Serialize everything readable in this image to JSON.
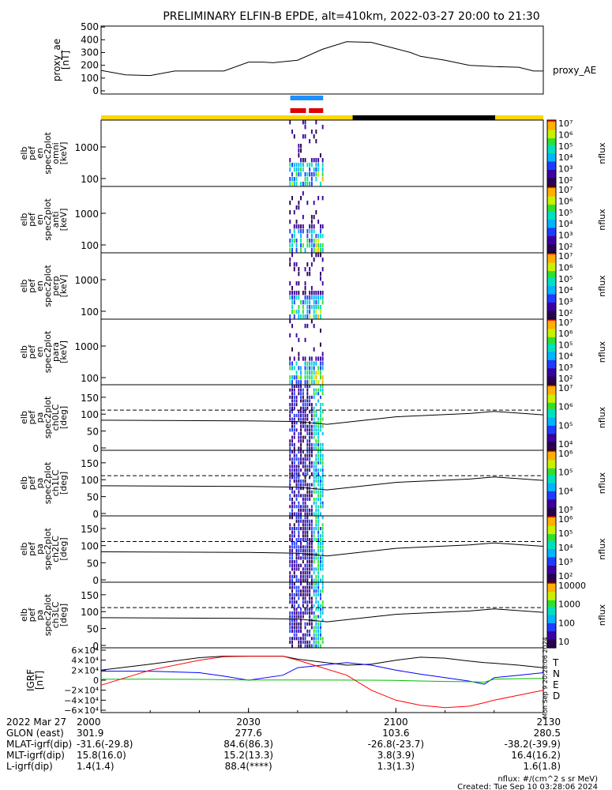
{
  "title": "PRELIMINARY ELFIN-B EPDE, alt=410km, 2022-03-27 20:00 to 21:30",
  "chart_data": [
    {
      "type": "line",
      "panel": "proxy_ae",
      "ylabel": [
        "proxy_ae",
        "[nT]"
      ],
      "series_label": "proxy_AE",
      "yticks": [
        "500",
        "400",
        "300",
        "200",
        "100",
        "0"
      ],
      "ylim": [
        0,
        500
      ],
      "x_minutes": [
        0,
        5,
        10,
        15,
        20,
        25,
        30,
        33,
        35,
        40,
        45,
        50,
        55,
        60,
        63,
        65,
        70,
        75,
        80,
        85,
        88,
        90
      ],
      "values": [
        160,
        125,
        120,
        155,
        155,
        155,
        225,
        225,
        220,
        240,
        325,
        385,
        380,
        330,
        300,
        270,
        240,
        200,
        190,
        185,
        155,
        155
      ]
    },
    {
      "type": "heatmap",
      "panel": "en_spec",
      "ylabel": [
        "elb",
        "pef",
        "en",
        "spec2plot",
        "omni",
        "[keV]"
      ],
      "yticks": [
        "1000",
        "100"
      ],
      "cbar_ticks": [
        "10⁷",
        "10⁶",
        "10⁵",
        "10⁴",
        "10³",
        "10²"
      ],
      "cbar_label": "nflux"
    },
    {
      "type": "heatmap",
      "panel": "en_spec_anti",
      "ylabel": [
        "elb",
        "pef",
        "en",
        "spec2plot",
        "anti",
        "[keV]"
      ],
      "yticks": [
        "1000",
        "100"
      ],
      "cbar_ticks": [
        "10⁷",
        "10⁶",
        "10⁵",
        "10⁴",
        "10³",
        "10²"
      ],
      "cbar_label": "nflux"
    },
    {
      "type": "heatmap",
      "panel": "en_spec_perp",
      "ylabel": [
        "elb",
        "pef",
        "en",
        "spec2plot",
        "perp",
        "[keV]"
      ],
      "yticks": [
        "1000",
        "100"
      ],
      "cbar_ticks": [
        "10⁷",
        "10⁶",
        "10⁵",
        "10⁴",
        "10³",
        "10²"
      ],
      "cbar_label": "nflux"
    },
    {
      "type": "heatmap",
      "panel": "en_spec_para",
      "ylabel": [
        "elb",
        "pef",
        "en",
        "spec2plot",
        "para",
        "[keV]"
      ],
      "yticks": [
        "1000",
        "100"
      ],
      "cbar_ticks": [
        "10⁷",
        "10⁶",
        "10⁵",
        "10⁴",
        "10³",
        "10²"
      ],
      "cbar_label": "nflux"
    },
    {
      "type": "heatmap",
      "panel": "pa_ch0",
      "ylabel": [
        "elb",
        "pef",
        "pa",
        "spec2plot",
        "ch0LC",
        "[deg]"
      ],
      "yticks": [
        "150",
        "100",
        "50",
        "0"
      ],
      "cbar_ticks": [
        "10⁷",
        "10⁶",
        "10⁵",
        "10⁴"
      ],
      "cbar_label": "nflux"
    },
    {
      "type": "heatmap",
      "panel": "pa_ch1",
      "ylabel": [
        "elb",
        "pef",
        "pa",
        "spec2plot",
        "ch1LC",
        "[deg]"
      ],
      "yticks": [
        "150",
        "100",
        "50",
        "0"
      ],
      "cbar_ticks": [
        "10⁶",
        "10⁵",
        "10⁴",
        "10³"
      ],
      "cbar_label": "nflux"
    },
    {
      "type": "heatmap",
      "panel": "pa_ch2",
      "ylabel": [
        "elb",
        "pef",
        "pa",
        "spec2plot",
        "ch2LC",
        "[deg]"
      ],
      "yticks": [
        "150",
        "100",
        "50",
        "0"
      ],
      "cbar_ticks": [
        "10⁶",
        "10⁵",
        "10⁴",
        "10³",
        "10²"
      ],
      "cbar_label": "nflux"
    },
    {
      "type": "heatmap",
      "panel": "pa_ch3",
      "ylabel": [
        "elb",
        "pef",
        "pa",
        "spec2plot",
        "ch3LC",
        "[deg]"
      ],
      "yticks": [
        "150",
        "100",
        "50",
        "0"
      ],
      "cbar_ticks": [
        "10000",
        "1000",
        "100",
        "10"
      ],
      "cbar_label": "nflux"
    },
    {
      "type": "line",
      "panel": "igrf",
      "ylabel": [
        "IGRF",
        "[nT]"
      ],
      "yticks": [
        "6×10⁴",
        "4×10⁴",
        "2×10⁴",
        "0",
        "−2×10⁴",
        "−4×10⁴",
        "−6×10⁴"
      ],
      "ylim": [
        -60000,
        60000
      ],
      "legend": [
        "T",
        "N",
        "E",
        "D"
      ],
      "colors": {
        "T": "#000000",
        "N": "#0000ff",
        "E": "#00bb00",
        "D": "#ff0000"
      },
      "x_minutes": [
        0,
        10,
        20,
        25,
        30,
        37,
        40,
        50,
        55,
        60,
        65,
        70,
        75,
        78,
        80,
        85,
        90
      ],
      "T": [
        20000,
        32000,
        45000,
        48000,
        48000,
        48000,
        42000,
        30000,
        32000,
        40000,
        46000,
        44000,
        38000,
        35000,
        34000,
        30000,
        25000
      ],
      "N": [
        18000,
        18000,
        15000,
        8000,
        0,
        10000,
        25000,
        35000,
        30000,
        20000,
        12000,
        5000,
        -2000,
        -8000,
        5000,
        10000,
        15000
      ],
      "E": [
        2000,
        2000,
        1500,
        1000,
        500,
        500,
        500,
        200,
        0,
        -500,
        -1500,
        -2500,
        -3000,
        -4000,
        2000,
        3000,
        3500
      ],
      "D": [
        -10000,
        20000,
        40000,
        47000,
        48000,
        48000,
        40000,
        10000,
        -20000,
        -40000,
        -50000,
        -55000,
        -52000,
        -45000,
        -40000,
        -30000,
        -20000
      ]
    }
  ],
  "xaxis": {
    "row_labels": [
      "2022 Mar 27",
      "GLON (east)",
      "MLAT-igrf(dip)",
      "MLT-igrf(dip)",
      "L-igrf(dip)"
    ],
    "ticks": [
      "2000",
      "2030",
      "2100",
      "2130"
    ],
    "glon": [
      "301.9",
      "277.6",
      "103.6",
      "280.5"
    ],
    "mlat": [
      "-31.6(-29.8)",
      "84.6(86.3)",
      "-26.8(-23.7)",
      "-38.2(-39.9)"
    ],
    "mlt": [
      "15.8(16.0)",
      "15.2(13.3)",
      "3.8(3.9)",
      "16.4(16.2)"
    ],
    "lval": [
      "1.4(1.4)",
      "88.4(****)",
      "1.3(1.3)",
      "1.6(1.8)"
    ]
  },
  "footer": {
    "units": "nflux: #/(cm^2 s sr MeV)",
    "created": "Created: Tue Sep 10 03:28:06 2024",
    "vertical_stamp": "Mon Sep 9 20:28:06 2024"
  },
  "colors": {
    "sunlit": "#ffd700",
    "shadow": "#000000",
    "ibo": "#1e90ff",
    "obo": "#dd0000"
  }
}
